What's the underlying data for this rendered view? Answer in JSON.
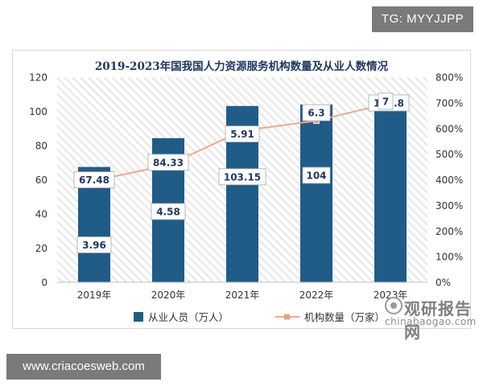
{
  "badges": {
    "tg": "TG: MYYJJPP",
    "url": "www.criacoesweb.com"
  },
  "watermark": {
    "name": "观研报告网",
    "url": "chinabaogao.com"
  },
  "colors": {
    "bar": "#1f5c87",
    "line": "#f0a98a",
    "marker": "#e8a484",
    "title": "#1f3864",
    "hatch": "#e3e3e3"
  },
  "chart_data": {
    "type": "bar",
    "title": "2019-2023年国我国人力资源服务机构数量及从业人数情况",
    "categories": [
      "2019年",
      "2020年",
      "2021年",
      "2022年",
      "2023年"
    ],
    "ylim": [
      0,
      120
    ],
    "yticks": [
      0,
      20,
      40,
      60,
      80,
      100,
      120
    ],
    "y2lim": [
      0,
      8
    ],
    "y2ticks": [
      "0%",
      "100%",
      "200%",
      "300%",
      "400%",
      "500%",
      "600%",
      "700%",
      "800%"
    ],
    "series": [
      {
        "name": "从业人员（万人）",
        "type": "bar",
        "axis": "left",
        "values": [
          67.48,
          84.33,
          103.15,
          104,
          105.8
        ],
        "labels": [
          "67.48",
          "84.33",
          "103.15",
          "104",
          "105.8"
        ]
      },
      {
        "name": "机构数量（万家）",
        "type": "line",
        "axis": "right",
        "values": [
          3.96,
          4.58,
          5.91,
          6.3,
          7
        ],
        "labels": [
          "3.96",
          "4.58",
          "5.91",
          "6.3",
          "7"
        ]
      }
    ],
    "legend": "bottom"
  }
}
